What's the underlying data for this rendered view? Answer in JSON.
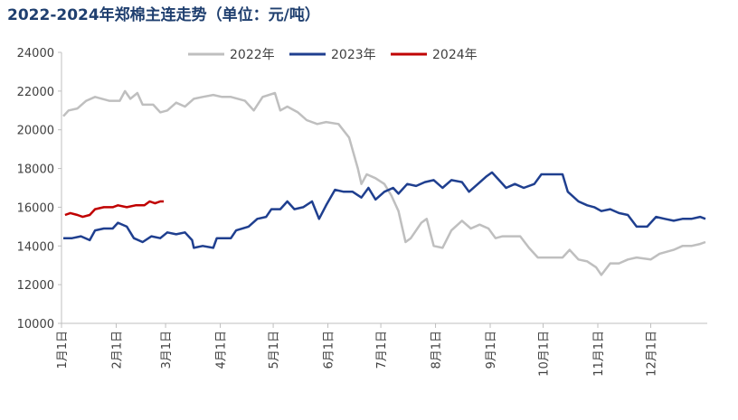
{
  "chart_data": {
    "type": "line",
    "title": "2022-2024年郑棉主连走势（单位：元/吨）",
    "xlim": [
      1,
      366
    ],
    "xticks": [
      {
        "value": 1,
        "label": "1月1日"
      },
      {
        "value": 32,
        "label": "2月1日"
      },
      {
        "value": 60,
        "label": "3月1日"
      },
      {
        "value": 91,
        "label": "4月1日"
      },
      {
        "value": 121,
        "label": "5月1日"
      },
      {
        "value": 152,
        "label": "6月1日"
      },
      {
        "value": 182,
        "label": "7月1日"
      },
      {
        "value": 213,
        "label": "8月1日"
      },
      {
        "value": 244,
        "label": "9月1日"
      },
      {
        "value": 274,
        "label": "10月1日"
      },
      {
        "value": 305,
        "label": "11月1日"
      },
      {
        "value": 335,
        "label": "12月1日"
      }
    ],
    "ylim": [
      10000,
      24000
    ],
    "yticks": [
      10000,
      12000,
      14000,
      16000,
      18000,
      20000,
      22000,
      24000
    ],
    "grid": false,
    "legend": "top",
    "series": [
      {
        "name": "2022年",
        "color": "#bfbfbf",
        "x": [
          2,
          5,
          10,
          15,
          20,
          28,
          34,
          37,
          40,
          44,
          47,
          53,
          57,
          61,
          66,
          71,
          76,
          81,
          87,
          92,
          97,
          105,
          110,
          115,
          122,
          125,
          129,
          135,
          140,
          146,
          151,
          158,
          164,
          169,
          171,
          174,
          179,
          184,
          188,
          192,
          196,
          199,
          205,
          208,
          212,
          217,
          222,
          228,
          233,
          238,
          243,
          247,
          251,
          256,
          261,
          266,
          271,
          279,
          285,
          289,
          294,
          299,
          304,
          307,
          312,
          317,
          322,
          327,
          335,
          340,
          348,
          353,
          358,
          363,
          366
        ],
        "values": [
          20700,
          21000,
          21100,
          21500,
          21700,
          21500,
          21500,
          22000,
          21600,
          21900,
          21300,
          21300,
          20900,
          21000,
          21400,
          21200,
          21600,
          21700,
          21800,
          21700,
          21700,
          21500,
          21000,
          21700,
          21900,
          21000,
          21200,
          20900,
          20500,
          20300,
          20400,
          20300,
          19600,
          18000,
          17200,
          17700,
          17500,
          17200,
          16600,
          15800,
          14200,
          14400,
          15200,
          15400,
          14000,
          13900,
          14800,
          15300,
          14900,
          15100,
          14900,
          14400,
          14500,
          14500,
          14500,
          13900,
          13400,
          13400,
          13400,
          13800,
          13300,
          13200,
          12900,
          12500,
          13100,
          13100,
          13300,
          13400,
          13300,
          13600,
          13800,
          14000,
          14000,
          14100,
          14200
        ]
      },
      {
        "name": "2023年",
        "color": "#1f3f8f",
        "x": [
          2,
          7,
          12,
          17,
          20,
          25,
          30,
          33,
          38,
          42,
          47,
          52,
          57,
          61,
          66,
          71,
          75,
          76,
          81,
          87,
          89,
          97,
          100,
          107,
          112,
          117,
          120,
          125,
          129,
          133,
          138,
          143,
          147,
          151,
          156,
          161,
          166,
          171,
          175,
          179,
          184,
          189,
          192,
          197,
          202,
          207,
          212,
          217,
          222,
          228,
          232,
          237,
          242,
          245,
          249,
          253,
          258,
          263,
          269,
          273,
          279,
          285,
          288,
          294,
          299,
          303,
          307,
          312,
          317,
          322,
          327,
          333,
          338,
          343,
          348,
          353,
          358,
          363,
          366
        ],
        "values": [
          14400,
          14400,
          14500,
          14300,
          14800,
          14900,
          14900,
          15200,
          15000,
          14400,
          14200,
          14500,
          14400,
          14700,
          14600,
          14700,
          14300,
          13900,
          14000,
          13900,
          14400,
          14400,
          14800,
          15000,
          15400,
          15500,
          15900,
          15900,
          16300,
          15900,
          16000,
          16300,
          15400,
          16100,
          16900,
          16800,
          16800,
          16500,
          17000,
          16400,
          16800,
          17000,
          16700,
          17200,
          17100,
          17300,
          17400,
          17000,
          17400,
          17300,
          16800,
          17200,
          17600,
          17800,
          17400,
          17000,
          17200,
          17000,
          17200,
          17700,
          17700,
          17700,
          16800,
          16300,
          16100,
          16000,
          15800,
          15900,
          15700,
          15600,
          15000,
          15000,
          15500,
          15400,
          15300,
          15400,
          15400,
          15500,
          15400
        ]
      },
      {
        "name": "2024年",
        "color": "#c00000",
        "x": [
          3,
          6,
          10,
          13,
          17,
          20,
          25,
          30,
          33,
          38,
          43,
          48,
          51,
          54,
          57,
          59
        ],
        "values": [
          15600,
          15700,
          15600,
          15500,
          15600,
          15900,
          16000,
          16000,
          16100,
          16000,
          16100,
          16100,
          16300,
          16200,
          16300,
          16300
        ]
      }
    ]
  }
}
